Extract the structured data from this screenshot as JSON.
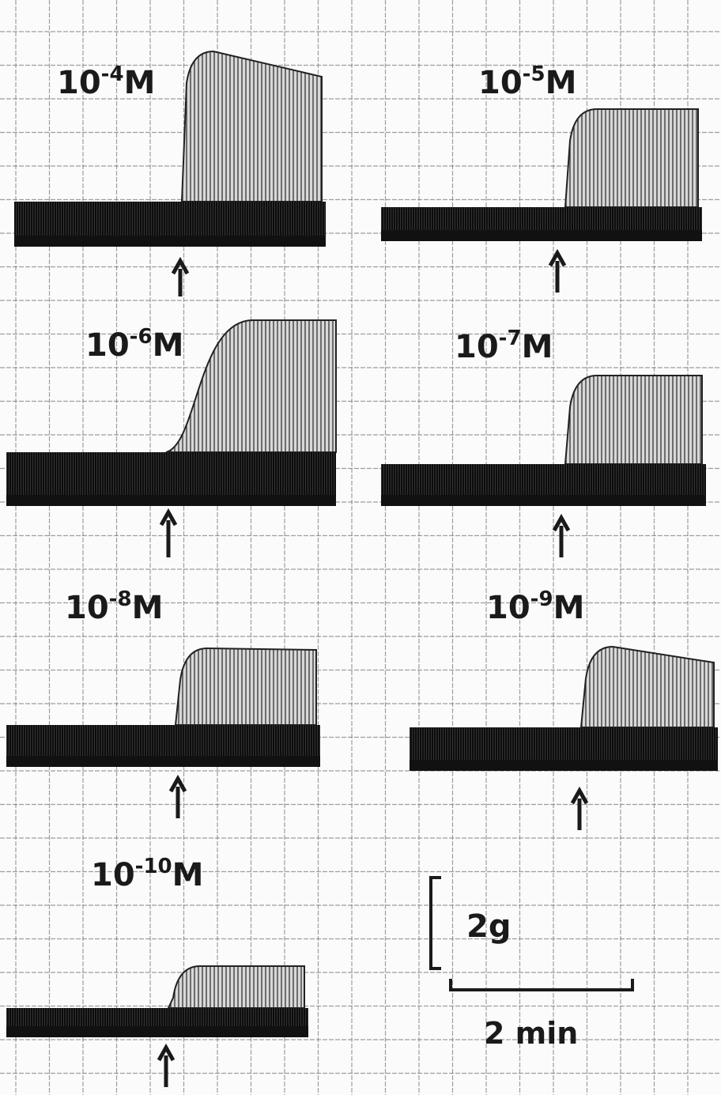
{
  "panels": [
    {
      "base": "10",
      "exponent": "-4",
      "unit": "M"
    },
    {
      "base": "10",
      "exponent": "-5",
      "unit": "M"
    },
    {
      "base": "10",
      "exponent": "-6",
      "unit": "M"
    },
    {
      "base": "10",
      "exponent": "-7",
      "unit": "M"
    },
    {
      "base": "10",
      "exponent": "-8",
      "unit": "M"
    },
    {
      "base": "10",
      "exponent": "-9",
      "unit": "M"
    },
    {
      "base": "10",
      "exponent": "-10",
      "unit": "M"
    }
  ],
  "scale_bar": {
    "force": "2g",
    "time": "2 min"
  }
}
